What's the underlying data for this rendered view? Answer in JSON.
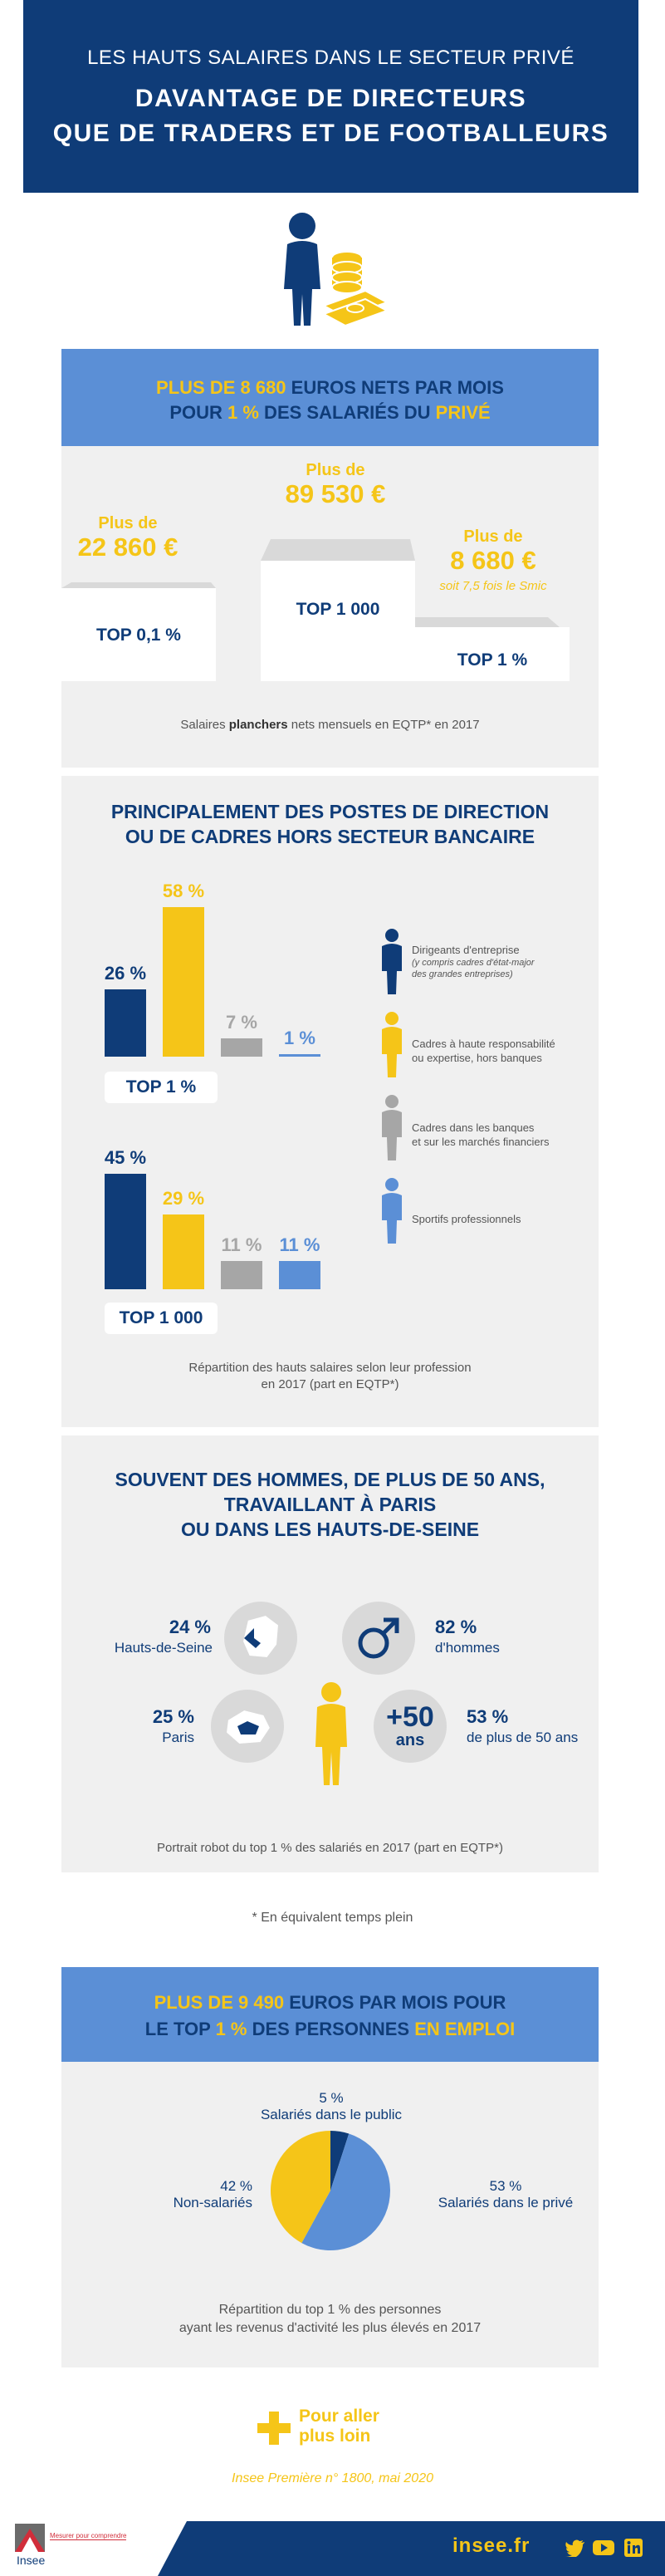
{
  "header": {
    "supertitle": "LES HAUTS SALAIRES DANS LE SECTEUR PRIVÉ",
    "title_line1": "DAVANTAGE DE DIRECTEURS",
    "title_line2": "QUE DE TRADERS ET DE FOOTBALLEURS"
  },
  "colors": {
    "navy": "#0f3c78",
    "gold": "#f5c518",
    "light_blue": "#5b8fd6",
    "grey": "#a6a6a6",
    "panel": "#f0f0f0"
  },
  "section1": {
    "band_line1": {
      "a": "PLUS DE 8 680",
      "b": " EUROS NETS PAR MOIS"
    },
    "band_line2": {
      "a": "POUR ",
      "b": "1 %",
      "c": " DES SALARIÉS DU ",
      "d": "PRIVÉ"
    },
    "podium": {
      "center": {
        "prefix": "Plus de",
        "amount": "89 530 €",
        "label": "TOP 1 000"
      },
      "left": {
        "prefix": "Plus de",
        "amount": "22 860 €",
        "label": "TOP 0,1 %"
      },
      "right": {
        "prefix": "Plus de",
        "amount": "8 680 €",
        "note": "soit 7,5 fois le Smic",
        "label": "TOP 1 %"
      }
    },
    "caption": {
      "a": "Salaires ",
      "b": "planchers",
      "c": " nets mensuels en EQTP* en 2017"
    }
  },
  "section2": {
    "title_line1": "PRINCIPALEMENT DES POSTES DE DIRECTION",
    "title_line2": "OU DE CADRES HORS SECTEUR BANCAIRE",
    "top1": {
      "label": "TOP 1 %",
      "values": [
        "26 %",
        "58 %",
        "7 %",
        "1 %"
      ]
    },
    "top1000": {
      "label": "TOP 1 000",
      "values": [
        "45 %",
        "29 %",
        "11 %",
        "11 %"
      ]
    },
    "legend": [
      {
        "line1": "Dirigeants d'entreprise",
        "sub1": "(y compris cadres d'état-major",
        "sub2": "des grandes entreprises)"
      },
      {
        "line1": "Cadres à haute responsabilité",
        "line2": "ou expertise, hors banques"
      },
      {
        "line1": "Cadres dans les banques",
        "line2": "et sur les marchés financiers"
      },
      {
        "line1": "Sportifs professionnels"
      }
    ],
    "caption_line1": "Répartition des hauts salaires selon leur profession",
    "caption_line2": "en 2017 (part en EQTP*)"
  },
  "chart_data": [
    {
      "type": "bar",
      "title": "TOP 1 %",
      "categories": [
        "Dirigeants d'entreprise",
        "Cadres à haute responsabilité ou expertise, hors banques",
        "Cadres dans les banques et sur les marchés financiers",
        "Sportifs professionnels"
      ],
      "values": [
        26,
        58,
        7,
        1
      ]
    },
    {
      "type": "bar",
      "title": "TOP 1 000",
      "categories": [
        "Dirigeants d'entreprise",
        "Cadres à haute responsabilité ou expertise, hors banques",
        "Cadres dans les banques et sur les marchés financiers",
        "Sportifs professionnels"
      ],
      "values": [
        45,
        29,
        11,
        11
      ]
    },
    {
      "type": "pie",
      "categories": [
        "Salariés dans le public",
        "Salariés dans le privé",
        "Non-salariés"
      ],
      "values": [
        5,
        53,
        42
      ]
    }
  ],
  "section3": {
    "title_line1": "SOUVENT DES HOMMES, DE PLUS DE 50 ANS,",
    "title_line2": "TRAVAILLANT À PARIS",
    "title_line3": "OU DANS LES HAUTS-DE-SEINE",
    "stats": {
      "hds": {
        "num": "24 %",
        "txt": "Hauts-de-Seine"
      },
      "men": {
        "num": "82 %",
        "txt": "d'hommes"
      },
      "paris": {
        "num": "25 %",
        "txt": "Paris"
      },
      "age": {
        "num": "53 %",
        "txt": "de plus de 50 ans",
        "badge1": "+50",
        "badge2": "ans"
      }
    },
    "caption": "Portrait robot du top 1 % des salariés en 2017 (part en EQTP*)"
  },
  "footnote": "* En équivalent temps plein",
  "section4": {
    "band_line1": {
      "a": "PLUS DE 9 490",
      "b": " EUROS PAR MOIS POUR"
    },
    "band_line2": {
      "a": "LE TOP ",
      "b": "1 %",
      "c": " DES PERSONNES ",
      "d": "EN EMPLOI"
    },
    "pie_labels": {
      "public": {
        "pct": "5 %",
        "txt": "Salariés dans le public"
      },
      "prive": {
        "pct": "53 %",
        "txt": "Salariés dans le privé"
      },
      "non": {
        "pct": "42 %",
        "txt": "Non-salariés"
      }
    },
    "caption_line1": "Répartition du top 1 % des personnes",
    "caption_line2": "ayant les revenus d'activité les plus élevés en 2017"
  },
  "more": {
    "line1": "Pour aller",
    "line2": "plus loin"
  },
  "reference": "Insee Première n° 1800, mai 2020",
  "footer": {
    "logo": "Insee",
    "tagline": "Mesurer pour comprendre",
    "site": "insee.fr",
    "social_icons": [
      "twitter-icon",
      "youtube-icon",
      "linkedin-icon"
    ]
  }
}
